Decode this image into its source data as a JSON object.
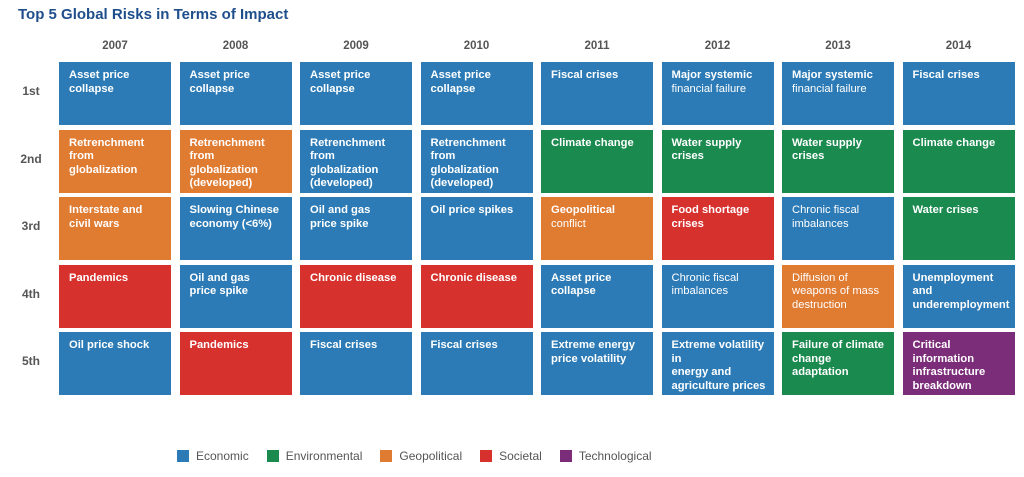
{
  "chart_data": {
    "type": "table",
    "title": "Top 5 Global Risks in Terms of Impact",
    "years": [
      "2007",
      "2008",
      "2009",
      "2010",
      "2011",
      "2012",
      "2013",
      "2014"
    ],
    "ranks": [
      "1st",
      "2nd",
      "3rd",
      "4th",
      "5th"
    ],
    "categories": [
      {
        "name": "Economic",
        "color": "#2c7bb6"
      },
      {
        "name": "Environmental",
        "color": "#1a8a4f"
      },
      {
        "name": "Geopolitical",
        "color": "#e07b32"
      },
      {
        "name": "Societal",
        "color": "#d7312e"
      },
      {
        "name": "Technological",
        "color": "#7b2d7a"
      }
    ],
    "cells": [
      [
        {
          "bold": "Asset price collapse",
          "normal": "",
          "category": "Economic"
        },
        {
          "bold": "Retrenchment\nfrom globalization",
          "normal": "",
          "category": "Geopolitical"
        },
        {
          "bold": "Interstate and\ncivil wars",
          "normal": "",
          "category": "Geopolitical"
        },
        {
          "bold": "Pandemics",
          "normal": "",
          "category": "Societal"
        },
        {
          "bold": "Oil price shock",
          "normal": "",
          "category": "Economic"
        }
      ],
      [
        {
          "bold": "Asset price collapse",
          "normal": "",
          "category": "Economic"
        },
        {
          "bold": "Retrenchment\nfrom globalization\n(developed)",
          "normal": "",
          "category": "Geopolitical"
        },
        {
          "bold": "Slowing Chinese\neconomy (<6%)",
          "normal": "",
          "category": "Economic"
        },
        {
          "bold": "Oil and gas\nprice spike",
          "normal": "",
          "category": "Economic"
        },
        {
          "bold": "Pandemics",
          "normal": "",
          "category": "Societal"
        }
      ],
      [
        {
          "bold": "Asset price collapse",
          "normal": "",
          "category": "Economic"
        },
        {
          "bold": "Retrenchment\nfrom globalization\n(developed)",
          "normal": "",
          "category": "Economic"
        },
        {
          "bold": "Oil and gas\nprice spike",
          "normal": "",
          "category": "Economic"
        },
        {
          "bold": "Chronic disease",
          "normal": "",
          "category": "Societal"
        },
        {
          "bold": "Fiscal crises",
          "normal": "",
          "category": "Economic"
        }
      ],
      [
        {
          "bold": "Asset price collapse",
          "normal": "",
          "category": "Economic"
        },
        {
          "bold": "Retrenchment\nfrom globalization\n(developed)",
          "normal": "",
          "category": "Economic"
        },
        {
          "bold": "Oil price spikes",
          "normal": "",
          "category": "Economic"
        },
        {
          "bold": "Chronic disease",
          "normal": "",
          "category": "Societal"
        },
        {
          "bold": "Fiscal crises",
          "normal": "",
          "category": "Economic"
        }
      ],
      [
        {
          "bold": "Fiscal crises",
          "normal": "",
          "category": "Economic"
        },
        {
          "bold": "Climate change",
          "normal": "",
          "category": "Environmental"
        },
        {
          "bold": "Geopolitical",
          "normal": "conflict",
          "category": "Geopolitical"
        },
        {
          "bold": "Asset price collapse",
          "normal": "",
          "category": "Economic"
        },
        {
          "bold": "Extreme energy\nprice volatility",
          "normal": "",
          "category": "Economic"
        }
      ],
      [
        {
          "bold": "Major systemic",
          "normal": "financial failure",
          "category": "Economic"
        },
        {
          "bold": "Water supply\ncrises",
          "normal": "",
          "category": "Environmental"
        },
        {
          "bold": "Food shortage\ncrises",
          "normal": "",
          "category": "Societal"
        },
        {
          "bold": "",
          "normal": "Chronic fiscal\nimbalances",
          "category": "Economic"
        },
        {
          "bold": "Extreme volatility in\nenergy and\nagriculture prices",
          "normal": "",
          "category": "Economic"
        }
      ],
      [
        {
          "bold": "Major systemic",
          "normal": "financial failure",
          "category": "Economic"
        },
        {
          "bold": "Water supply\ncrises",
          "normal": "",
          "category": "Environmental"
        },
        {
          "bold": "",
          "normal": "Chronic fiscal\nimbalances",
          "category": "Economic"
        },
        {
          "bold": "",
          "normal": "Diffusion of\nweapons of mass\ndestruction",
          "category": "Geopolitical"
        },
        {
          "bold": "Failure of climate\nchange adaptation",
          "normal": "",
          "category": "Environmental"
        }
      ],
      [
        {
          "bold": "Fiscal crises",
          "normal": "",
          "category": "Economic"
        },
        {
          "bold": "Climate change",
          "normal": "",
          "category": "Environmental"
        },
        {
          "bold": "Water crises",
          "normal": "",
          "category": "Environmental"
        },
        {
          "bold": "Unemployment\nand\nunderemployment",
          "normal": "",
          "category": "Economic"
        },
        {
          "bold": "Critical information\ninfrastructure\nbreakdown",
          "normal": "",
          "category": "Technological"
        }
      ]
    ]
  }
}
